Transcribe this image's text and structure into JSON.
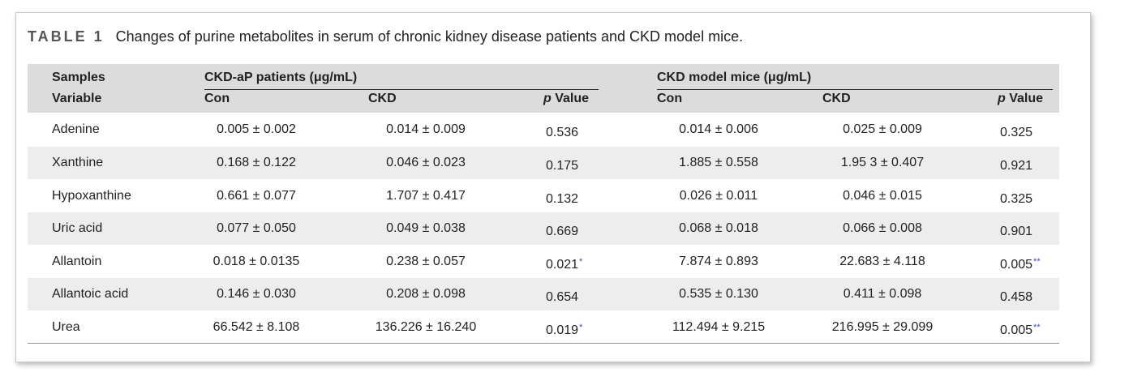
{
  "caption": {
    "label": "TABLE 1",
    "text": "Changes of purine metabolites in serum of chronic kidney disease patients and CKD model mice."
  },
  "header": {
    "samples": "Samples",
    "variable": "Variable",
    "group1": "CKD-aP patients (μg/mL)",
    "group2": "CKD model mice (μg/mL)",
    "con": "Con",
    "ckd": "CKD",
    "p_italic": "p",
    "p_rest": " Value"
  },
  "rows": [
    {
      "name": "Adenine",
      "h_con": "0.005 ± 0.002",
      "h_ckd": "0.014 ± 0.009",
      "h_p": "0.536",
      "h_sig": "",
      "m_con": "0.014 ± 0.006",
      "m_ckd": "0.025 ± 0.009",
      "m_p": "0.325",
      "m_sig": ""
    },
    {
      "name": "Xanthine",
      "h_con": "0.168 ± 0.122",
      "h_ckd": "0.046 ± 0.023",
      "h_p": "0.175",
      "h_sig": "",
      "m_con": "1.885 ± 0.558",
      "m_ckd": "1.95 3 ± 0.407",
      "m_p": "0.921",
      "m_sig": ""
    },
    {
      "name": "Hypoxanthine",
      "h_con": "0.661 ± 0.077",
      "h_ckd": "1.707 ± 0.417",
      "h_p": "0.132",
      "h_sig": "",
      "m_con": "0.026 ± 0.011",
      "m_ckd": "0.046 ± 0.015",
      "m_p": "0.325",
      "m_sig": ""
    },
    {
      "name": "Uric acid",
      "h_con": "0.077 ± 0.050",
      "h_ckd": "0.049 ± 0.038",
      "h_p": "0.669",
      "h_sig": "",
      "m_con": "0.068 ± 0.018",
      "m_ckd": "0.066 ± 0.008",
      "m_p": "0.901",
      "m_sig": ""
    },
    {
      "name": "Allantoin",
      "h_con": "0.018 ± 0.0135",
      "h_ckd": "0.238 ± 0.057",
      "h_p": "0.021",
      "h_sig": "*",
      "m_con": "7.874 ± 0.893",
      "m_ckd": "22.683 ± 4.118",
      "m_p": "0.005",
      "m_sig": "**"
    },
    {
      "name": "Allantoic acid",
      "h_con": "0.146 ± 0.030",
      "h_ckd": "0.208 ± 0.098",
      "h_p": "0.654",
      "h_sig": "",
      "m_con": "0.535 ± 0.130",
      "m_ckd": "0.411 ± 0.098",
      "m_p": "0.458",
      "m_sig": ""
    },
    {
      "name": "Urea",
      "h_con": "66.542 ± 8.108",
      "h_ckd": "136.226 ± 16.240",
      "h_p": "0.019",
      "h_sig": "*",
      "m_con": "112.494 ± 9.215",
      "m_ckd": "216.995 ± 29.099",
      "m_p": "0.005",
      "m_sig": "**"
    }
  ]
}
